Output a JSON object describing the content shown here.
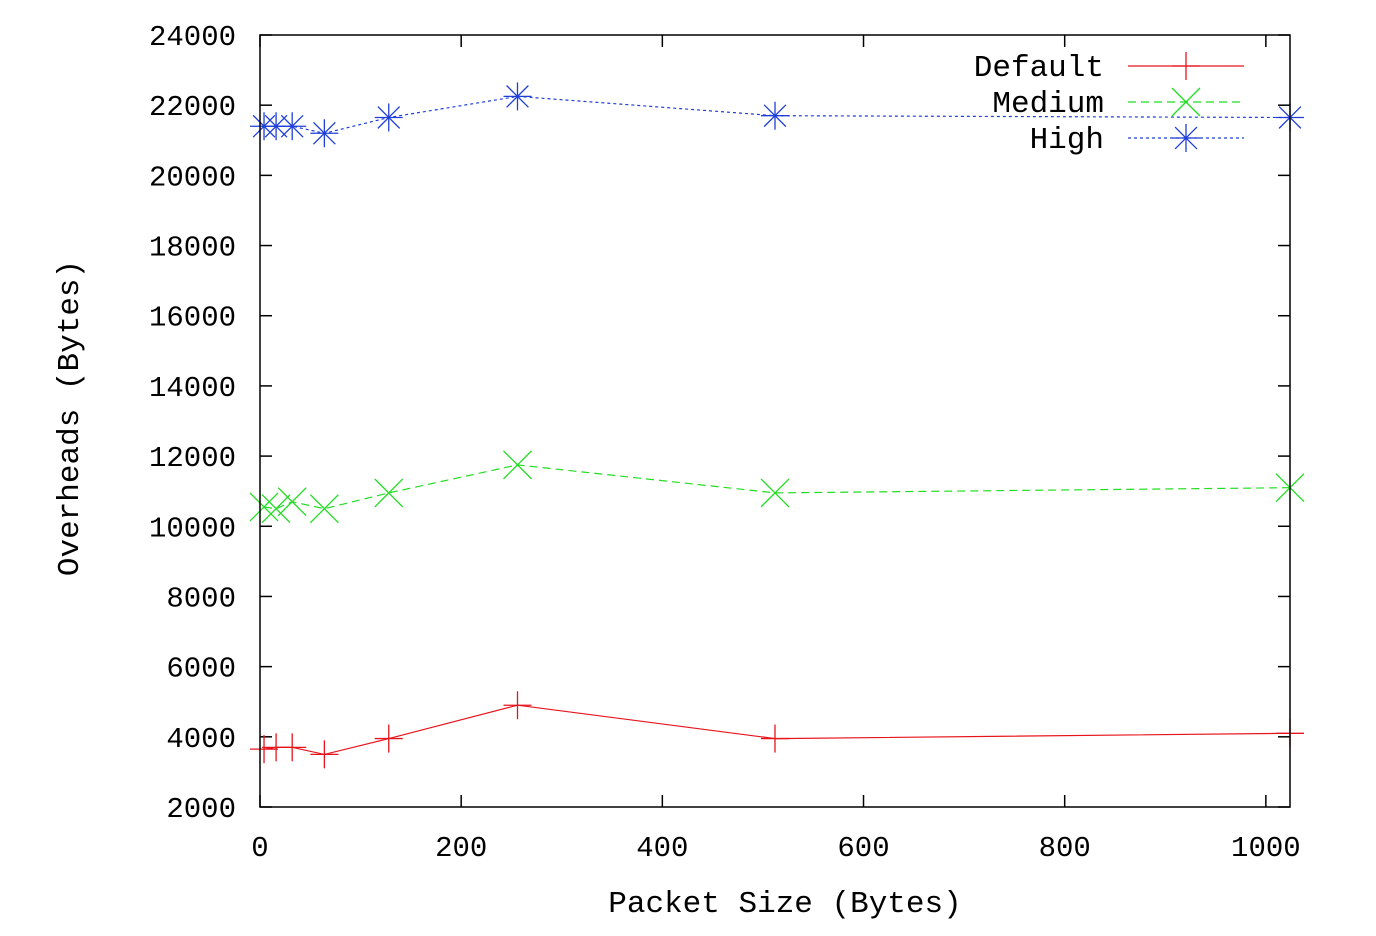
{
  "chart_data": {
    "type": "line",
    "title": "",
    "xlabel": "Packet Size (Bytes)",
    "ylabel": "Overheads (Bytes)",
    "xlim": [
      0,
      1024
    ],
    "ylim": [
      2000,
      24000
    ],
    "xticks": [
      0,
      200,
      400,
      600,
      800,
      1000
    ],
    "yticks": [
      2000,
      4000,
      6000,
      8000,
      10000,
      12000,
      14000,
      16000,
      18000,
      20000,
      22000,
      24000
    ],
    "grid": false,
    "legend_position": "top-right",
    "series": [
      {
        "name": "Default",
        "color": "#e8141c",
        "marker": "plus",
        "line": "solid",
        "x": [
          4,
          16,
          32,
          64,
          128,
          256,
          512,
          1024
        ],
        "y": [
          3650,
          3700,
          3700,
          3500,
          3950,
          4900,
          3950,
          4100
        ]
      },
      {
        "name": "Medium",
        "color": "#22dd22",
        "marker": "cross",
        "line": "dashed",
        "x": [
          4,
          16,
          32,
          64,
          128,
          256,
          512,
          1024
        ],
        "y": [
          10550,
          10500,
          10700,
          10500,
          10950,
          11750,
          10950,
          11100
        ]
      },
      {
        "name": "High",
        "color": "#1f3fd8",
        "marker": "star",
        "line": "dotted",
        "x": [
          4,
          16,
          32,
          64,
          128,
          256,
          512,
          1024
        ],
        "y": [
          21400,
          21400,
          21400,
          21200,
          21650,
          22250,
          21700,
          21650
        ]
      }
    ]
  }
}
